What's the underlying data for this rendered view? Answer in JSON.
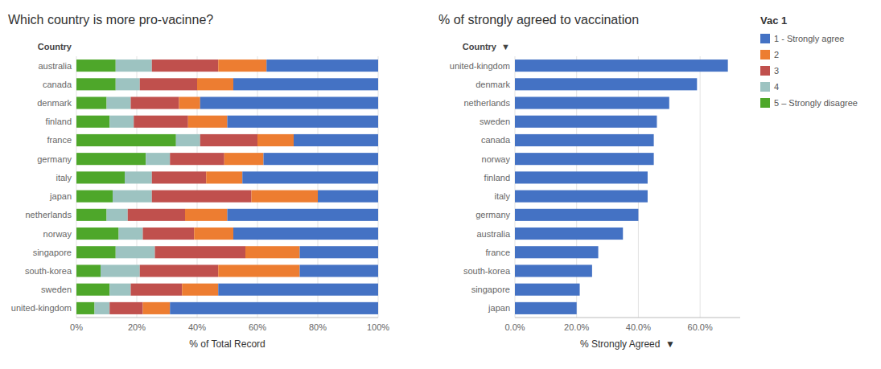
{
  "chart_data": [
    {
      "type": "bar",
      "orientation": "horizontal",
      "stacked": true,
      "title": "Which country is more pro-vacinne?",
      "xlabel": "% of Total Record",
      "ylabel": "Country",
      "legend_title": "Vac 1",
      "legend": "upper right",
      "grid": true,
      "categories": [
        "australia",
        "canada",
        "denmark",
        "finland",
        "france",
        "germany",
        "italy",
        "japan",
        "netherlands",
        "norway",
        "singapore",
        "south-korea",
        "sweden",
        "united-kingdom"
      ],
      "series": [
        {
          "name": "5 – Strongly disagree",
          "color": "#4ea72a",
          "values": [
            13,
            13,
            10,
            11,
            33,
            23,
            16,
            12,
            10,
            14,
            13,
            8,
            11,
            6
          ]
        },
        {
          "name": "4",
          "color": "#9dc3c1",
          "values": [
            12,
            8,
            8,
            8,
            8,
            8,
            9,
            13,
            7,
            8,
            13,
            13,
            7,
            5
          ]
        },
        {
          "name": "3",
          "color": "#c0504d",
          "values": [
            22,
            19,
            16,
            18,
            19,
            18,
            18,
            33,
            19,
            17,
            30,
            26,
            17,
            11
          ]
        },
        {
          "name": "2",
          "color": "#ed7d31",
          "values": [
            16,
            12,
            7,
            13,
            12,
            13,
            12,
            22,
            14,
            13,
            18,
            27,
            12,
            9
          ]
        },
        {
          "name": "1 - Strongly agree",
          "color": "#4472c4",
          "values": [
            37,
            48,
            59,
            50,
            28,
            38,
            45,
            20,
            50,
            48,
            26,
            26,
            53,
            69
          ]
        }
      ],
      "xlim": [
        0,
        100
      ],
      "xticks": [
        {
          "value": 0,
          "label": "0%"
        },
        {
          "value": 20,
          "label": "20%"
        },
        {
          "value": 40,
          "label": "40%"
        },
        {
          "value": 60,
          "label": "60%"
        },
        {
          "value": 80,
          "label": "80%"
        },
        {
          "value": 100,
          "label": "100%"
        }
      ]
    },
    {
      "type": "bar",
      "orientation": "horizontal",
      "title": "% of strongly agreed to vaccination",
      "xlabel": "% Strongly Agreed  ▼",
      "ylabel": "Country  ▼",
      "grid": true,
      "categories": [
        "united-kingdom",
        "denmark",
        "netherlands",
        "sweden",
        "canada",
        "norway",
        "finland",
        "italy",
        "germany",
        "australia",
        "france",
        "south-korea",
        "singapore",
        "japan"
      ],
      "values": [
        69,
        59,
        50,
        46,
        45,
        45,
        43,
        43,
        40,
        35,
        27,
        25,
        21,
        20
      ],
      "color": "#4472c4",
      "xlim": [
        0,
        73
      ],
      "xticks": [
        {
          "value": 0,
          "label": "0.0%"
        },
        {
          "value": 20,
          "label": "20.0%"
        },
        {
          "value": 40,
          "label": "40.0%"
        },
        {
          "value": 60,
          "label": "60.0%"
        }
      ]
    }
  ]
}
